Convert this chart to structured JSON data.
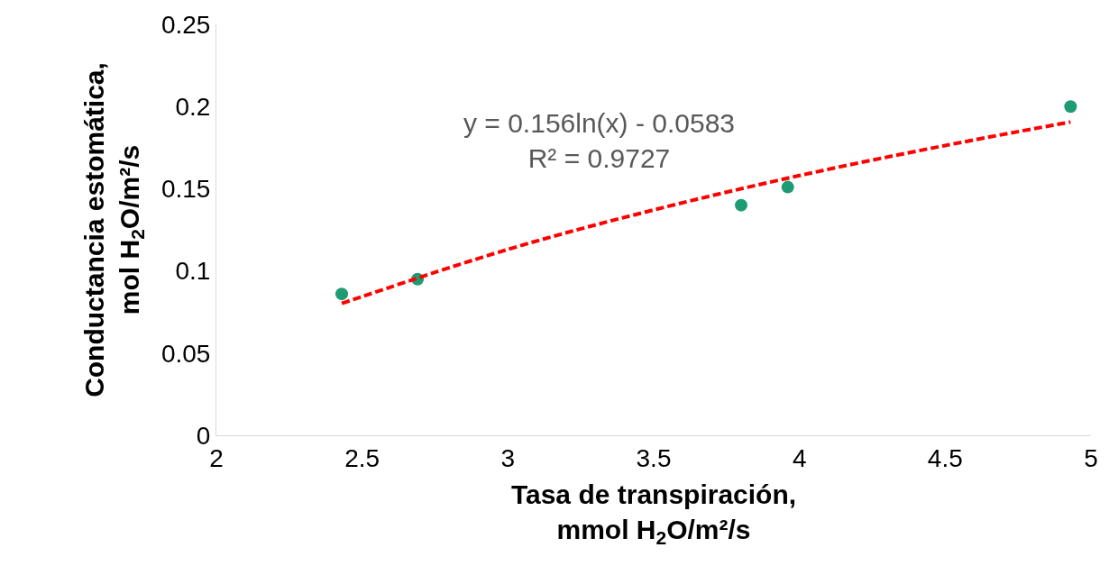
{
  "chart_data": {
    "type": "scatter",
    "xlabel": "Tasa de transpiración,\nmmol H$_{2}$O/m²/s",
    "ylabel": "Conductancia estomática,\nmol H$_{2}$O/m²/s",
    "series": [
      {
        "color": "#1f9b73",
        "x": [
          2.43,
          2.69,
          3.8,
          3.96,
          4.93
        ],
        "values": [
          0.086,
          0.095,
          0.14,
          0.151,
          0.2
        ]
      },
      {
        "type": "line",
        "color": "#ff0000",
        "line_style": "dashed",
        "marker": "none",
        "x": [
          2.43,
          3.0,
          3.5,
          4.0,
          4.5,
          4.93
        ],
        "values": [
          0.0802,
          0.1131,
          0.1371,
          0.158,
          0.1763,
          0.1906
        ]
      }
    ],
    "annotations": [
      "y = 0.156ln(x) - 0.0583\nR² = 0.9727"
    ],
    "marker": "circle",
    "legend": false,
    "xlim": [
      2,
      5
    ],
    "xticks": [
      2,
      2.5,
      3,
      3.5,
      4,
      4.5,
      5
    ],
    "ylim": [
      0,
      0.25
    ],
    "yticks": [
      0,
      0.05,
      0.1,
      0.15,
      0.2,
      0.25
    ]
  }
}
